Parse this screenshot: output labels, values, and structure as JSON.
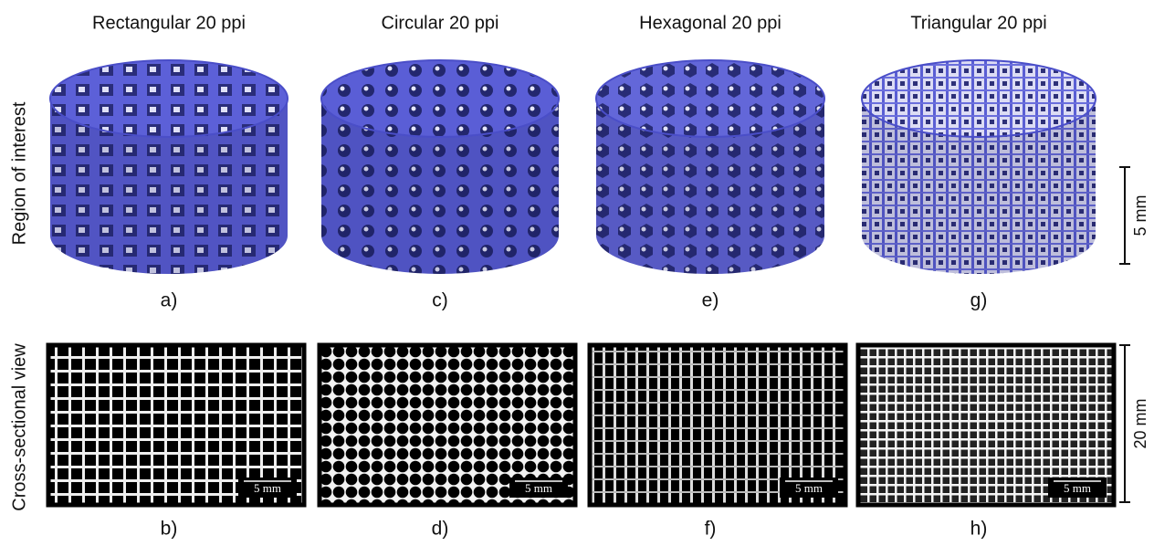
{
  "figure": {
    "columns": [
      {
        "title": "Rectangular 20 ppi",
        "top_label": "a)",
        "bottom_label": "b)",
        "scale_label": "5 mm"
      },
      {
        "title": "Circular 20 ppi",
        "top_label": "c)",
        "bottom_label": "d)",
        "scale_label": "5 mm"
      },
      {
        "title": "Hexagonal 20 ppi",
        "top_label": "e)",
        "bottom_label": "f)",
        "scale_label": "5 mm"
      },
      {
        "title": "Triangular 20 ppi",
        "top_label": "g)",
        "bottom_label": "h)",
        "scale_label": "5 mm"
      }
    ],
    "rows": [
      "Region of interest",
      "Cross-sectional view"
    ],
    "scale_bars": [
      "5 mm",
      "20 mm"
    ]
  }
}
